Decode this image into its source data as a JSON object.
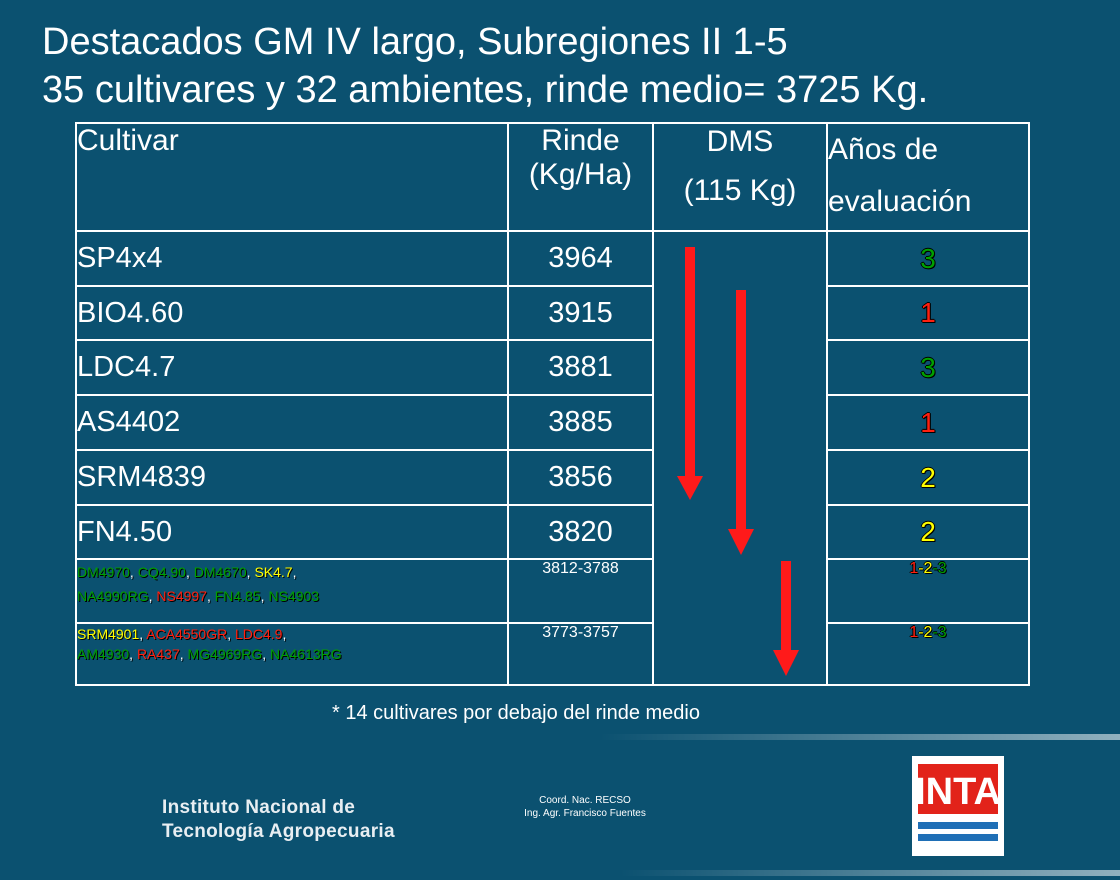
{
  "title": {
    "line1": "Destacados GM IV largo, Subregiones II 1-5",
    "line2": "35 cultivares y 32 ambientes, rinde medio= 3725 Kg."
  },
  "table": {
    "headers": {
      "cultivar": "Cultivar",
      "rinde_1": "Rinde",
      "rinde_2": "(Kg/Ha)",
      "dms_1": "DMS",
      "dms_2": "(115 Kg)",
      "anos_1": "Años de",
      "anos_2": "evaluación"
    },
    "rows": [
      {
        "cultivar": "SP4x4",
        "rinde": "3964",
        "anos": "3",
        "anos_color": "#00a000"
      },
      {
        "cultivar": "BIO4.60",
        "rinde": "3915",
        "anos": "1",
        "anos_color": "#ff2010"
      },
      {
        "cultivar": "LDC4.7",
        "rinde": "3881",
        "anos": "3",
        "anos_color": "#00a000"
      },
      {
        "cultivar": "AS4402",
        "rinde": "3885",
        "anos": "1",
        "anos_color": "#ff2010"
      },
      {
        "cultivar": "SRM4839",
        "rinde": "3856",
        "anos": "2",
        "anos_color": "#ffff00"
      },
      {
        "cultivar": "FN4.50",
        "rinde": "3820",
        "anos": "2",
        "anos_color": "#ffff00"
      }
    ],
    "group1": {
      "cultivars": [
        "DM4970",
        "CQ4.90",
        "DM4670",
        "SK4.7",
        "NA4990RG",
        "NS4997",
        "FN4.85",
        "NS4903"
      ],
      "rinde": "3812-3788",
      "anos": [
        "1",
        "2",
        "3"
      ]
    },
    "group2": {
      "cultivars": [
        "SRM4901",
        "ACA4550GR",
        "LDC4.9",
        "AM4930",
        "RA437",
        "MG4969RG",
        "NA4613RG"
      ],
      "rinde": "3773-3757",
      "anos": [
        "1",
        "2",
        "3"
      ]
    },
    "separators": {
      "comma": ",",
      "dash": "-"
    }
  },
  "colors": {
    "background": "#0b5170",
    "green": "#00a000",
    "red": "#ff2010",
    "yellow": "#ffff00",
    "arrow": "#ff1a1a"
  },
  "footnote": "* 14 cultivares por debajo del rinde medio",
  "footer": {
    "institute_line1": "Instituto Nacional de",
    "institute_line2": "Tecnología Agropecuaria",
    "coord_line1": "Coord. Nac. RECSO",
    "coord_line2": "Ing. Agr. Francisco Fuentes",
    "logo_text": "INTA"
  }
}
